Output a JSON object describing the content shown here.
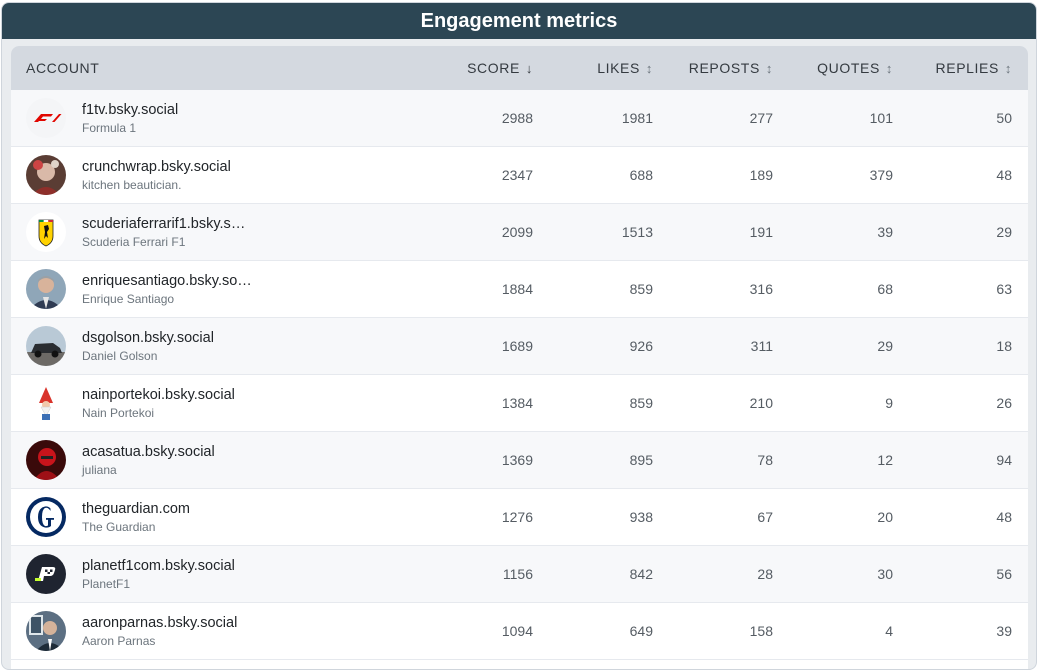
{
  "header": {
    "title": "Engagement metrics"
  },
  "table": {
    "columns": {
      "account": "ACCOUNT",
      "score": "SCORE",
      "likes": "LIKES",
      "reposts": "REPOSTS",
      "quotes": "QUOTES",
      "replies": "REPLIES",
      "sort_active": "↓",
      "sort_inactive": "↕"
    },
    "rows": [
      {
        "handle": "f1tv.bsky.social",
        "name": "Formula 1",
        "avatar": "f1-logo-icon",
        "score": "2988",
        "likes": "1981",
        "reposts": "277",
        "quotes": "101",
        "replies": "50"
      },
      {
        "handle": "crunchwrap.bsky.social",
        "name": "kitchen beautician.",
        "avatar": "portrait-photo-icon",
        "score": "2347",
        "likes": "688",
        "reposts": "189",
        "quotes": "379",
        "replies": "48"
      },
      {
        "handle": "scuderiaferrarif1.bsky.so…",
        "name": "Scuderia Ferrari F1",
        "avatar": "ferrari-shield-icon",
        "score": "2099",
        "likes": "1513",
        "reposts": "191",
        "quotes": "39",
        "replies": "29"
      },
      {
        "handle": "enriquesantiago.bsky.so…",
        "name": "Enrique Santiago",
        "avatar": "portrait-photo-icon",
        "score": "1884",
        "likes": "859",
        "reposts": "316",
        "quotes": "68",
        "replies": "63"
      },
      {
        "handle": "dsgolson.bsky.social",
        "name": "Daniel Golson",
        "avatar": "car-photo-icon",
        "score": "1689",
        "likes": "926",
        "reposts": "311",
        "quotes": "29",
        "replies": "18"
      },
      {
        "handle": "nainportekoi.bsky.social",
        "name": "Nain Portekoi",
        "avatar": "gnome-icon",
        "score": "1384",
        "likes": "859",
        "reposts": "210",
        "quotes": "9",
        "replies": "26"
      },
      {
        "handle": "acasatua.bsky.social",
        "name": "juliana",
        "avatar": "red-photo-icon",
        "score": "1369",
        "likes": "895",
        "reposts": "78",
        "quotes": "12",
        "replies": "94"
      },
      {
        "handle": "theguardian.com",
        "name": "The Guardian",
        "avatar": "guardian-g-icon",
        "score": "1276",
        "likes": "938",
        "reposts": "67",
        "quotes": "20",
        "replies": "48"
      },
      {
        "handle": "planetf1com.bsky.social",
        "name": "PlanetF1",
        "avatar": "planetf1-logo-icon",
        "score": "1156",
        "likes": "842",
        "reposts": "28",
        "quotes": "30",
        "replies": "56"
      },
      {
        "handle": "aaronparnas.bsky.social",
        "name": "Aaron Parnas",
        "avatar": "portrait-photo-icon",
        "score": "1094",
        "likes": "649",
        "reposts": "158",
        "quotes": "4",
        "replies": "39"
      }
    ]
  },
  "colors": {
    "header_bg": "#2c4654",
    "table_header_bg": "#d4d9e0",
    "f1_red": "#e10600",
    "ferrari_yellow": "#ffd200",
    "guardian_navy": "#052962"
  }
}
